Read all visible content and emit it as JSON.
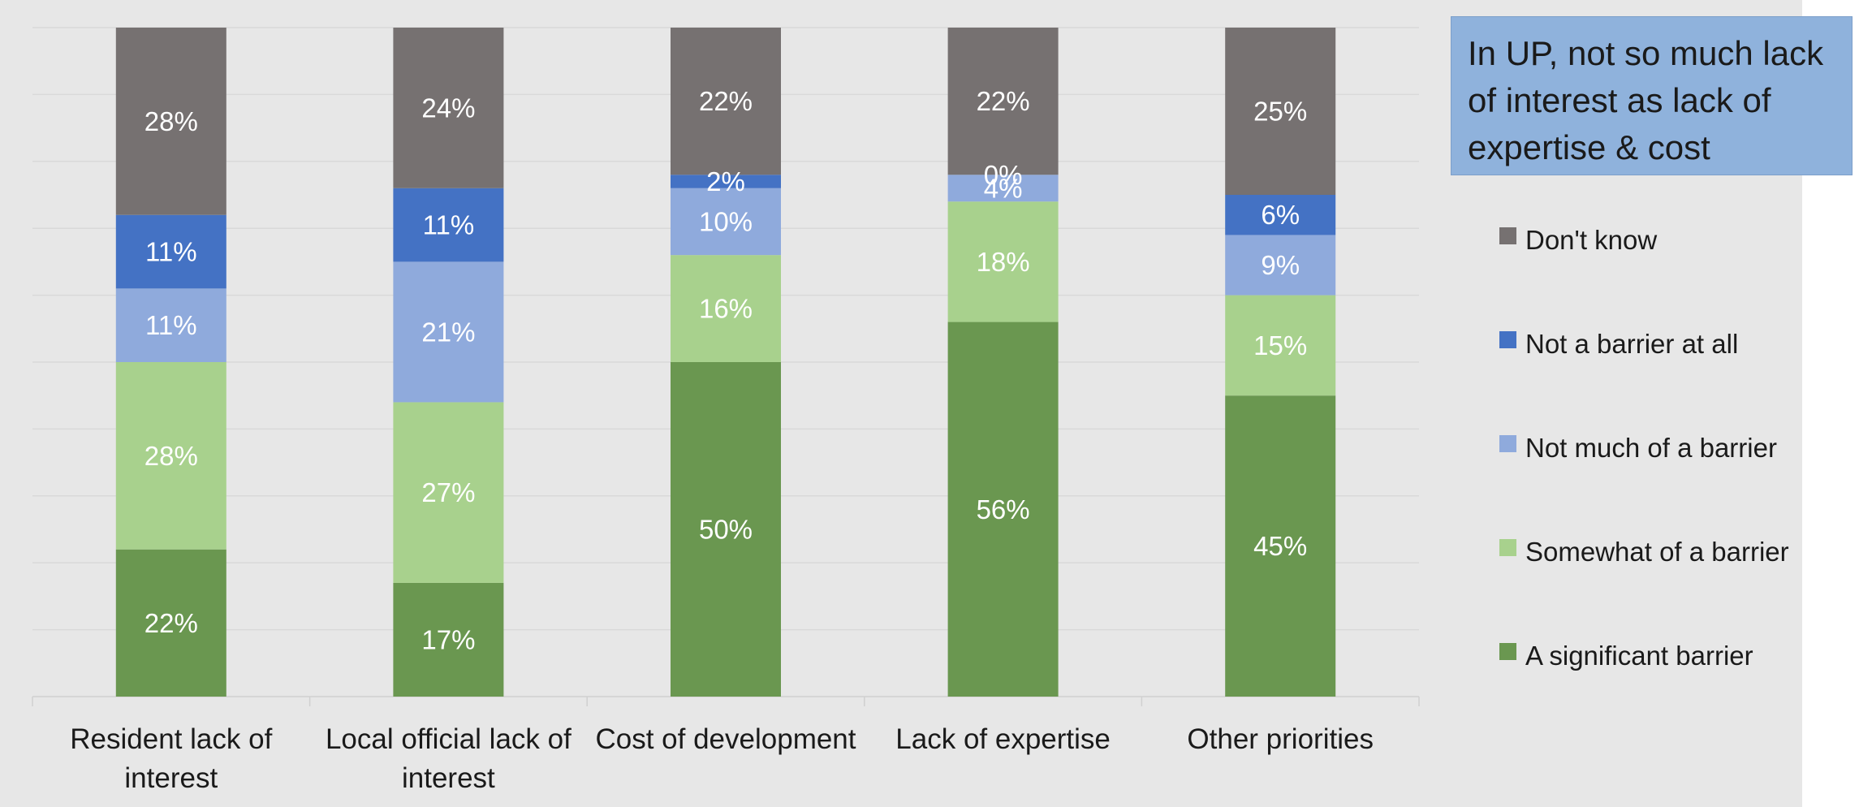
{
  "callout": {
    "text": "In UP, not so much lack of interest as lack of expertise & cost"
  },
  "colors": {
    "A significant barrier": "#6a9750",
    "Somewhat of a barrier": "#a8d18d",
    "Not much of a barrier": "#8faadc",
    "Not a barrier at all": "#4472c4",
    "Don't know": "#767171"
  },
  "chart_data": {
    "type": "bar",
    "stacked": true,
    "categories": [
      "Resident lack of interest",
      "Local official lack of interest",
      "Cost of development",
      "Lack of expertise",
      "Other priorities"
    ],
    "series": [
      {
        "name": "A significant barrier",
        "values": [
          22,
          17,
          50,
          56,
          45
        ]
      },
      {
        "name": "Somewhat of a barrier",
        "values": [
          28,
          27,
          16,
          18,
          15
        ]
      },
      {
        "name": "Not much of a barrier",
        "values": [
          11,
          21,
          10,
          4,
          9
        ]
      },
      {
        "name": "Not a barrier at all",
        "values": [
          11,
          11,
          2,
          0,
          6
        ]
      },
      {
        "name": "Don't know",
        "values": [
          28,
          24,
          22,
          22,
          25
        ]
      }
    ],
    "legend_order": [
      "Don't know",
      "Not a barrier at all",
      "Not much of a barrier",
      "Somewhat of a barrier",
      "A significant barrier"
    ],
    "ylim": [
      0,
      100
    ],
    "grid": true,
    "legend_position": "right"
  }
}
